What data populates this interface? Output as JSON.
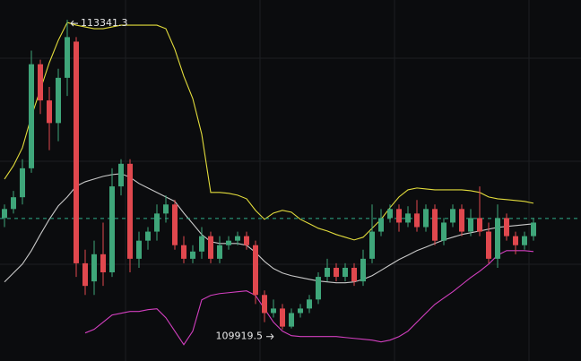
{
  "chart_data": {
    "type": "candlestick",
    "ylim": [
      109570,
      113560
    ],
    "up_color": "#3fa67a",
    "down_color": "#e0484e",
    "band_colors": {
      "upper": "#e2dc3c",
      "middle": "#c8c8c8",
      "lower": "#d23fbf"
    },
    "current_price": 111146,
    "current_price_color": "#2fae8a",
    "open": [
      111150,
      111250,
      111380,
      111700,
      112850,
      112450,
      112200,
      112700,
      113100,
      110650,
      110450,
      110750,
      110550,
      111500,
      111750,
      110700,
      110900,
      111000,
      111200,
      111300,
      110850,
      110700,
      110780,
      110950,
      110700,
      110850,
      110900,
      110950,
      110850,
      110300,
      110100,
      110150,
      109950,
      110100,
      110150,
      110250,
      110500,
      110600,
      110500,
      110600,
      110450,
      110700,
      111000,
      111150,
      111250,
      111100,
      111200,
      111050,
      111250,
      110900,
      111100,
      111250,
      111000,
      111150,
      111000,
      110700,
      111150,
      110950,
      110850,
      110950
    ],
    "high": [
      111300,
      111450,
      111800,
      113000,
      112900,
      112600,
      112800,
      113341.3,
      113150,
      110800,
      110900,
      111100,
      111700,
      111800,
      111800,
      111000,
      111050,
      111300,
      111400,
      111350,
      110950,
      110850,
      111050,
      111000,
      110950,
      110950,
      111000,
      111000,
      110900,
      110350,
      110250,
      110200,
      110150,
      110200,
      110300,
      110550,
      110700,
      110650,
      110650,
      110650,
      110800,
      111300,
      111250,
      111300,
      111300,
      111280,
      111350,
      111300,
      111300,
      111150,
      111300,
      111300,
      111250,
      111500,
      111100,
      111300,
      111200,
      111000,
      111000,
      111150
    ],
    "low": [
      111050,
      111200,
      111300,
      111650,
      112300,
      111900,
      112000,
      112500,
      110500,
      110300,
      110300,
      110400,
      110500,
      111400,
      110550,
      110600,
      110800,
      110900,
      111100,
      110800,
      110650,
      110650,
      110700,
      110650,
      110650,
      110800,
      110850,
      110800,
      110200,
      110000,
      110050,
      109919.5,
      109930,
      110050,
      110100,
      110200,
      110450,
      110450,
      110450,
      110400,
      110400,
      110650,
      110950,
      111100,
      111000,
      111050,
      111000,
      111000,
      110850,
      110850,
      111050,
      110950,
      110950,
      110950,
      110650,
      110600,
      110900,
      110750,
      110800,
      110900
    ],
    "close": [
      111250,
      111380,
      111700,
      112850,
      112450,
      112200,
      112700,
      113150,
      110650,
      110400,
      110750,
      110550,
      111500,
      111750,
      110700,
      110900,
      111000,
      111200,
      111300,
      110850,
      110700,
      110780,
      110950,
      110700,
      110850,
      110900,
      110950,
      110850,
      110300,
      110100,
      110150,
      109950,
      110100,
      110150,
      110250,
      110500,
      110600,
      110500,
      110600,
      110450,
      110700,
      111000,
      111150,
      111250,
      111100,
      111200,
      111050,
      111250,
      110900,
      111100,
      111250,
      111000,
      111150,
      111000,
      110700,
      111150,
      110950,
      110850,
      110950,
      111100
    ],
    "upper_band": [
      111581,
      111729,
      111927,
      112273,
      112570,
      112867,
      113114,
      113312,
      113282,
      113262,
      113243,
      113243,
      113262,
      113282,
      113282,
      113282,
      113282,
      113282,
      113243,
      113015,
      112718,
      112471,
      112076,
      111433,
      111433,
      111423,
      111403,
      111363,
      111235,
      111136,
      111205,
      111235,
      111215,
      111136,
      111087,
      111037,
      111007,
      110968,
      110938,
      110908,
      110938,
      111037,
      111136,
      111265,
      111383,
      111462,
      111482,
      111472,
      111462,
      111462,
      111462,
      111462,
      111452,
      111433,
      111383,
      111363,
      111354,
      111344,
      111334,
      111314
    ],
    "middle_band": [
      110444,
      110543,
      110641,
      110790,
      110968,
      111136,
      111284,
      111383,
      111502,
      111551,
      111581,
      111611,
      111630,
      111640,
      111601,
      111532,
      111482,
      111433,
      111383,
      111334,
      111205,
      111087,
      110968,
      110889,
      110869,
      110869,
      110869,
      110849,
      110770,
      110671,
      110592,
      110543,
      110513,
      110493,
      110473,
      110454,
      110444,
      110434,
      110434,
      110444,
      110473,
      110513,
      110572,
      110632,
      110691,
      110740,
      110790,
      110829,
      110869,
      110908,
      110938,
      110968,
      110988,
      111007,
      111027,
      111047,
      111057,
      111067,
      111077,
      111087
    ],
    "lower_band": [
      null,
      null,
      null,
      null,
      null,
      null,
      null,
      null,
      null,
      109880,
      109920,
      109999,
      110078,
      110098,
      110118,
      110118,
      110137,
      110147,
      110048,
      109900,
      109751,
      109900,
      110246,
      110295,
      110315,
      110325,
      110335,
      110345,
      110295,
      110147,
      109999,
      109900,
      109850,
      109840,
      109840,
      109840,
      109840,
      109840,
      109830,
      109820,
      109811,
      109801,
      109781,
      109801,
      109840,
      109900,
      109999,
      110098,
      110196,
      110266,
      110335,
      110414,
      110493,
      110562,
      110641,
      110740,
      110790,
      110790,
      110790,
      110780
    ],
    "annotations": {
      "max_label": "113341.3",
      "min_label": "109919.5"
    }
  }
}
